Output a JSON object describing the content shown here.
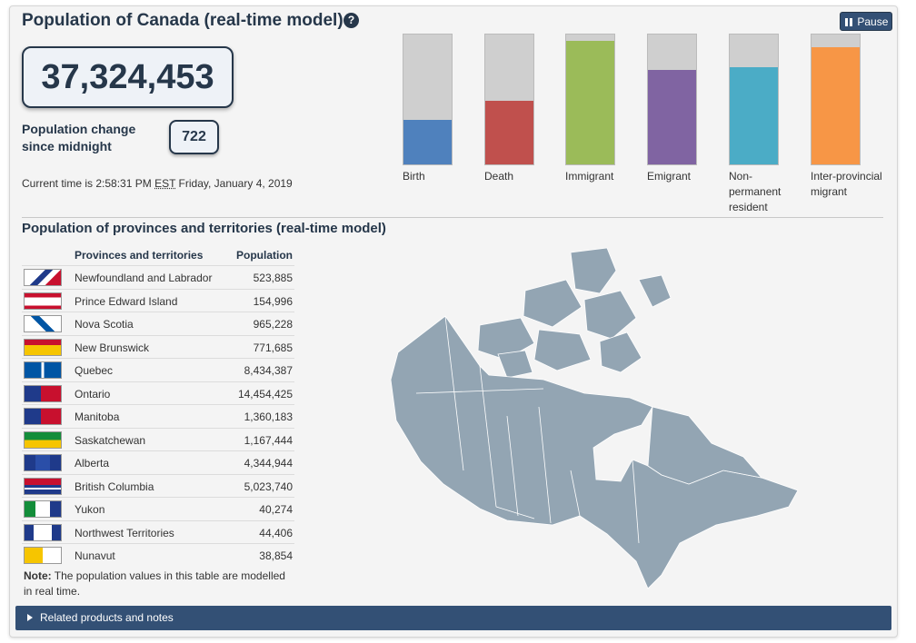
{
  "header": {
    "title": "Population of Canada (real-time model)",
    "help_icon": "?",
    "pause_label": "Pause"
  },
  "summary": {
    "population": "37,324,453",
    "change_label": "Population change since midnight",
    "change_value": "722",
    "time_prefix": "Current time is 2:58:31 PM",
    "time_zone": "EST",
    "time_suffix": "Friday, January 4, 2019"
  },
  "bars": [
    {
      "label": "Birth",
      "color": "#4f81bd",
      "fill": 0.34
    },
    {
      "label": "Death",
      "color": "#c0504d",
      "fill": 0.49
    },
    {
      "label": "Immigrant",
      "color": "#9bbb59",
      "fill": 0.95
    },
    {
      "label": "Emigrant",
      "color": "#8064a2",
      "fill": 0.73
    },
    {
      "label": "Non-permanent resident",
      "color": "#4bacc6",
      "fill": 0.75
    },
    {
      "label": "Inter-provincial migrant",
      "color": "#f79646",
      "fill": 0.9
    }
  ],
  "provinces": {
    "title": "Population of provinces and territories (real-time model)",
    "col_name": "Provinces and territories",
    "col_pop": "Population",
    "rows": [
      {
        "name": "Newfoundland and Labrador",
        "pop": "523,885",
        "flag": "newfoundland-flag-icon"
      },
      {
        "name": "Prince Edward Island",
        "pop": "154,996",
        "flag": "pei-flag-icon"
      },
      {
        "name": "Nova Scotia",
        "pop": "965,228",
        "flag": "nova-scotia-flag-icon"
      },
      {
        "name": "New Brunswick",
        "pop": "771,685",
        "flag": "new-brunswick-flag-icon"
      },
      {
        "name": "Quebec",
        "pop": "8,434,387",
        "flag": "quebec-flag-icon"
      },
      {
        "name": "Ontario",
        "pop": "14,454,425",
        "flag": "ontario-flag-icon"
      },
      {
        "name": "Manitoba",
        "pop": "1,360,183",
        "flag": "manitoba-flag-icon"
      },
      {
        "name": "Saskatchewan",
        "pop": "1,167,444",
        "flag": "saskatchewan-flag-icon"
      },
      {
        "name": "Alberta",
        "pop": "4,344,944",
        "flag": "alberta-flag-icon"
      },
      {
        "name": "British Columbia",
        "pop": "5,023,740",
        "flag": "bc-flag-icon"
      },
      {
        "name": "Yukon",
        "pop": "40,274",
        "flag": "yukon-flag-icon"
      },
      {
        "name": "Northwest Territories",
        "pop": "44,406",
        "flag": "nwt-flag-icon"
      },
      {
        "name": "Nunavut",
        "pop": "38,854",
        "flag": "nunavut-flag-icon"
      }
    ],
    "note_bold": "Note:",
    "note_text": "The population values in this table are modelled in real time."
  },
  "map": {
    "icon": "canada-map-icon",
    "color": "#93a5b3"
  },
  "footer": {
    "related_label": "Related products and notes"
  }
}
